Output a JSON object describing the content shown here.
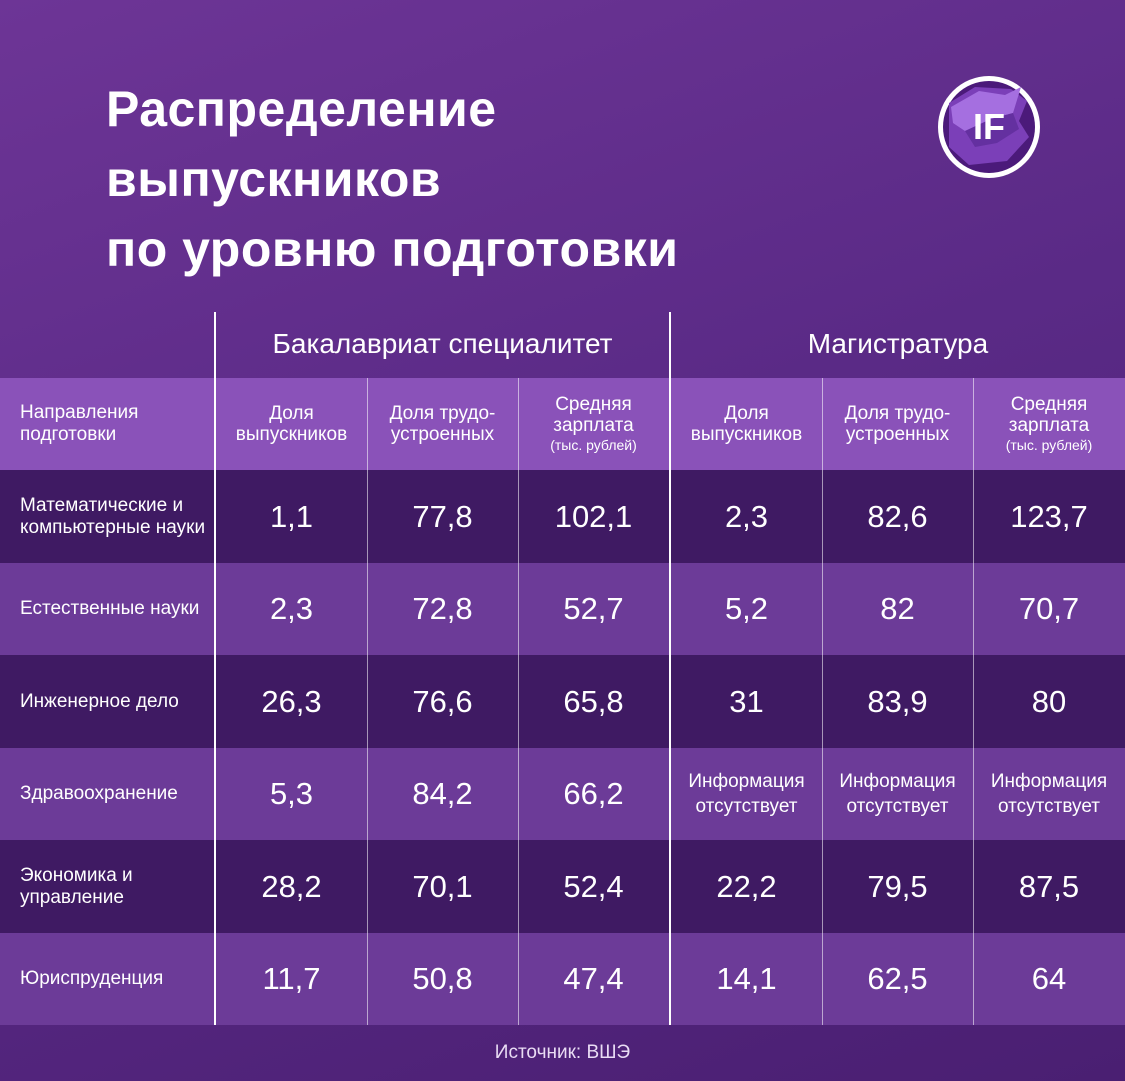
{
  "title_lines": [
    "Распределение",
    "выпускников",
    "по уровню подготовки"
  ],
  "logo_text": "IF",
  "colors": {
    "background": "#5a2a86",
    "header_row": "#8a52b9",
    "row_dark": "#3f1a63",
    "row_light": "#6c3b98",
    "text": "#ffffff"
  },
  "source": "Источник: ВШЭ",
  "chart_data": {
    "type": "table",
    "groups": [
      "Бакалавриат специалитет",
      "Магистратура"
    ],
    "row_header": "Направления подготовки",
    "columns": [
      {
        "label": "Доля выпускников",
        "sub": ""
      },
      {
        "label": "Доля трудо-устроенных",
        "sub": ""
      },
      {
        "label": "Средняя зарплата",
        "sub": "(тыс. рублей)"
      },
      {
        "label": "Доля выпускников",
        "sub": ""
      },
      {
        "label": "Доля трудо-устроенных",
        "sub": ""
      },
      {
        "label": "Средняя зарплата",
        "sub": "(тыс. рублей)"
      }
    ],
    "rows": [
      {
        "label": "Математические и компьютерные науки",
        "values": [
          "1,1",
          "77,8",
          "102,1",
          "2,3",
          "82,6",
          "123,7"
        ]
      },
      {
        "label": "Естественные науки",
        "values": [
          "2,3",
          "72,8",
          "52,7",
          "5,2",
          "82",
          "70,7"
        ]
      },
      {
        "label": "Инженерное дело",
        "values": [
          "26,3",
          "76,6",
          "65,8",
          "31",
          "83,9",
          "80"
        ]
      },
      {
        "label": "Здравоохранение",
        "values": [
          "5,3",
          "84,2",
          "66,2",
          "Информация отсутствует",
          "Информация отсутствует",
          "Информация отсутствует"
        ]
      },
      {
        "label": "Экономика и управление",
        "values": [
          "28,2",
          "70,1",
          "52,4",
          "22,2",
          "79,5",
          "87,5"
        ]
      },
      {
        "label": "Юриспруденция",
        "values": [
          "11,7",
          "50,8",
          "47,4",
          "14,1",
          "62,5",
          "64"
        ]
      }
    ]
  }
}
